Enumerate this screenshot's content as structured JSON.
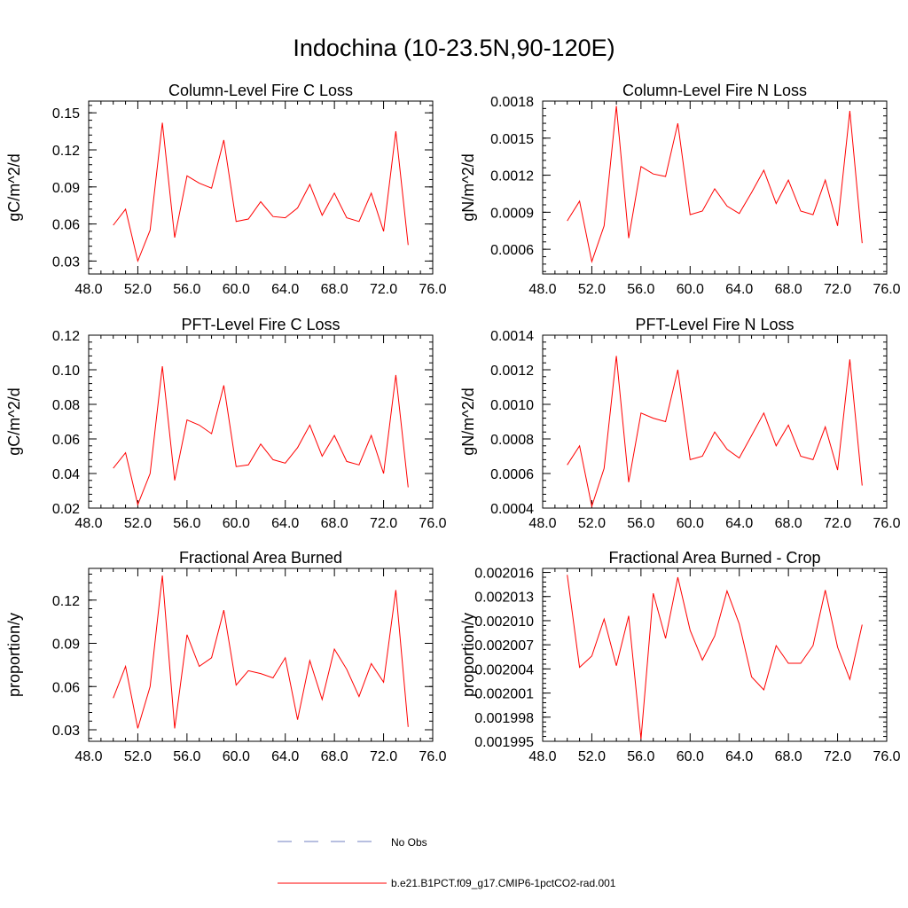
{
  "title": "Indochina (10-23.5N,90-120E)",
  "colors": {
    "series": "#ff0000",
    "obs": "#6f7fc0",
    "axis": "#000000"
  },
  "x_tick_labels": [
    "48.0",
    "52.0",
    "56.0",
    "60.0",
    "64.0",
    "68.0",
    "72.0",
    "76.0"
  ],
  "legend": {
    "obs_label": "No Obs",
    "model_label": "b.e21.B1PCT.f09_g17.CMIP6-1pctCO2-rad.001"
  },
  "chart_data": [
    {
      "type": "line",
      "title": "Column-Level Fire C Loss",
      "ylabel": "gC/m^2/d",
      "xlim": [
        48,
        76
      ],
      "ylim": [
        0.0195,
        0.1595
      ],
      "y_ticks": [
        0.03,
        0.06,
        0.09,
        0.12,
        0.15
      ],
      "y_tick_labels": [
        "0.03",
        "0.06",
        "0.09",
        "0.12",
        "0.15"
      ],
      "x": [
        50,
        51,
        52,
        53,
        54,
        55,
        56,
        57,
        58,
        59,
        60,
        61,
        62,
        63,
        64,
        65,
        66,
        67,
        68,
        69,
        70,
        71,
        72,
        73,
        74
      ],
      "series": [
        {
          "name": "b.e21.B1PCT.f09_g17.CMIP6-1pctCO2-rad.001",
          "values": [
            0.059,
            0.072,
            0.03,
            0.055,
            0.142,
            0.049,
            0.099,
            0.093,
            0.089,
            0.128,
            0.062,
            0.064,
            0.078,
            0.066,
            0.065,
            0.073,
            0.092,
            0.067,
            0.085,
            0.065,
            0.062,
            0.085,
            0.054,
            0.135,
            0.043
          ]
        }
      ]
    },
    {
      "type": "line",
      "title": "Column-Level Fire N Loss",
      "ylabel": "gN/m^2/d",
      "xlim": [
        48,
        76
      ],
      "ylim": [
        0.0004,
        0.0018
      ],
      "y_ticks": [
        0.0006,
        0.0009,
        0.0012,
        0.0015,
        0.0018
      ],
      "y_tick_labels": [
        "0.0006",
        "0.0009",
        "0.0012",
        "0.0015",
        "0.0018"
      ],
      "x": [
        50,
        51,
        52,
        53,
        54,
        55,
        56,
        57,
        58,
        59,
        60,
        61,
        62,
        63,
        64,
        65,
        66,
        67,
        68,
        69,
        70,
        71,
        72,
        73,
        74
      ],
      "series": [
        {
          "name": "b.e21.B1PCT.f09_g17.CMIP6-1pctCO2-rad.001",
          "values": [
            0.00083,
            0.00099,
            0.0005,
            0.00079,
            0.00176,
            0.00069,
            0.00127,
            0.00121,
            0.00119,
            0.00162,
            0.00088,
            0.00091,
            0.00109,
            0.00095,
            0.00089,
            0.00106,
            0.00124,
            0.00097,
            0.00116,
            0.00091,
            0.00088,
            0.00116,
            0.00079,
            0.00172,
            0.00065
          ]
        }
      ]
    },
    {
      "type": "line",
      "title": "PFT-Level Fire C Loss",
      "ylabel": "gC/m^2/d",
      "xlim": [
        48,
        76
      ],
      "ylim": [
        0.02,
        0.12
      ],
      "y_ticks": [
        0.02,
        0.04,
        0.06,
        0.08,
        0.1,
        0.12
      ],
      "y_tick_labels": [
        "0.02",
        "0.04",
        "0.06",
        "0.08",
        "0.10",
        "0.12"
      ],
      "x": [
        50,
        51,
        52,
        53,
        54,
        55,
        56,
        57,
        58,
        59,
        60,
        61,
        62,
        63,
        64,
        65,
        66,
        67,
        68,
        69,
        70,
        71,
        72,
        73,
        74
      ],
      "series": [
        {
          "name": "b.e21.B1PCT.f09_g17.CMIP6-1pctCO2-rad.001",
          "values": [
            0.043,
            0.052,
            0.022,
            0.04,
            0.102,
            0.036,
            0.071,
            0.068,
            0.063,
            0.091,
            0.044,
            0.045,
            0.057,
            0.048,
            0.046,
            0.055,
            0.068,
            0.05,
            0.062,
            0.047,
            0.045,
            0.062,
            0.04,
            0.097,
            0.032
          ]
        }
      ]
    },
    {
      "type": "line",
      "title": "PFT-Level Fire N Loss",
      "ylabel": "gN/m^2/d",
      "xlim": [
        48,
        76
      ],
      "ylim": [
        0.0004,
        0.0014
      ],
      "y_ticks": [
        0.0004,
        0.0006,
        0.0008,
        0.001,
        0.0012,
        0.0014
      ],
      "y_tick_labels": [
        "0.0004",
        "0.0006",
        "0.0008",
        "0.0010",
        "0.0012",
        "0.0014"
      ],
      "x": [
        50,
        51,
        52,
        53,
        54,
        55,
        56,
        57,
        58,
        59,
        60,
        61,
        62,
        63,
        64,
        65,
        66,
        67,
        68,
        69,
        70,
        71,
        72,
        73,
        74
      ],
      "series": [
        {
          "name": "b.e21.B1PCT.f09_g17.CMIP6-1pctCO2-rad.001",
          "values": [
            0.00065,
            0.00076,
            0.00041,
            0.00063,
            0.00128,
            0.00055,
            0.00095,
            0.00092,
            0.0009,
            0.0012,
            0.00068,
            0.0007,
            0.00084,
            0.00074,
            0.00069,
            0.00082,
            0.00095,
            0.00076,
            0.00088,
            0.0007,
            0.00068,
            0.00087,
            0.00062,
            0.00126,
            0.00053
          ]
        }
      ]
    },
    {
      "type": "line",
      "title": "Fractional Area Burned",
      "ylabel": "proportion/y",
      "xlim": [
        48,
        76
      ],
      "ylim": [
        0.022,
        0.142
      ],
      "y_ticks": [
        0.03,
        0.06,
        0.09,
        0.12
      ],
      "y_tick_labels": [
        "0.03",
        "0.06",
        "0.09",
        "0.12"
      ],
      "x": [
        50,
        51,
        52,
        53,
        54,
        55,
        56,
        57,
        58,
        59,
        60,
        61,
        62,
        63,
        64,
        65,
        66,
        67,
        68,
        69,
        70,
        71,
        72,
        73,
        74
      ],
      "series": [
        {
          "name": "b.e21.B1PCT.f09_g17.CMIP6-1pctCO2-rad.001",
          "values": [
            0.052,
            0.074,
            0.031,
            0.06,
            0.137,
            0.031,
            0.096,
            0.074,
            0.08,
            0.113,
            0.061,
            0.071,
            0.069,
            0.066,
            0.08,
            0.037,
            0.078,
            0.051,
            0.086,
            0.072,
            0.053,
            0.076,
            0.063,
            0.127,
            0.032
          ]
        }
      ]
    },
    {
      "type": "line",
      "title": "Fractional Area Burned - Crop",
      "ylabel": "proportion/y",
      "xlim": [
        48,
        76
      ],
      "ylim": [
        0.001995,
        0.0020165
      ],
      "y_ticks": [
        0.001995,
        0.001998,
        0.002001,
        0.002004,
        0.002007,
        0.00201,
        0.002013,
        0.002016
      ],
      "y_tick_labels": [
        "0.001995",
        "0.001998",
        "0.002001",
        "0.002004",
        "0.002007",
        "0.002010",
        "0.002013",
        "0.002016"
      ],
      "x": [
        50,
        51,
        52,
        53,
        54,
        55,
        56,
        57,
        58,
        59,
        60,
        61,
        62,
        63,
        64,
        65,
        66,
        67,
        68,
        69,
        70,
        71,
        72,
        73,
        74
      ],
      "series": [
        {
          "name": "b.e21.B1PCT.f09_g17.CMIP6-1pctCO2-rad.001",
          "values": [
            0.0020157,
            0.0020042,
            0.0020056,
            0.0020102,
            0.0020044,
            0.0020106,
            0.0019953,
            0.0020134,
            0.0020078,
            0.0020154,
            0.0020088,
            0.0020051,
            0.0020081,
            0.0020137,
            0.0020096,
            0.002003,
            0.0020014,
            0.0020069,
            0.0020047,
            0.0020047,
            0.0020069,
            0.0020138,
            0.0020067,
            0.0020027,
            0.0020095
          ]
        }
      ]
    }
  ]
}
